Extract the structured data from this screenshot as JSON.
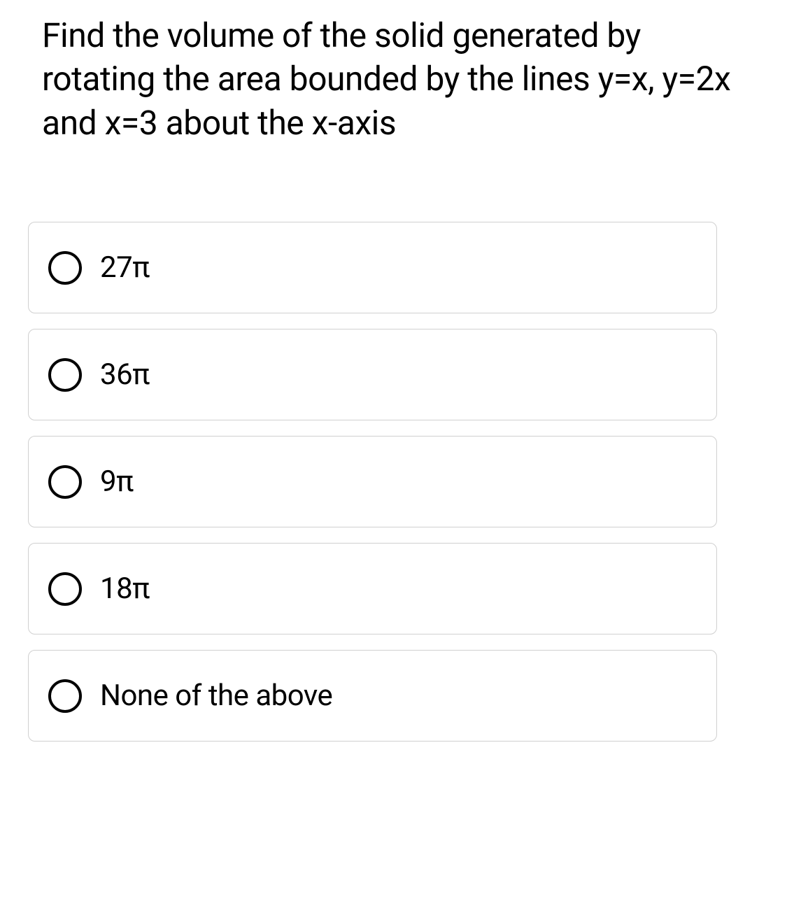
{
  "question": {
    "text": "Find the volume of the solid generated by rotating the area bounded by the lines y=x, y=2x and x=3  about the x-axis",
    "fontsize": 48,
    "text_color": "#000000"
  },
  "options": [
    {
      "label": "27π",
      "selected": false
    },
    {
      "label": "36π",
      "selected": false
    },
    {
      "label": "9π",
      "selected": false
    },
    {
      "label": "18π",
      "selected": false
    },
    {
      "label": "None of the above",
      "selected": false
    }
  ],
  "styling": {
    "background_color": "#ffffff",
    "option_border_color": "#d0d0d0",
    "option_border_radius": 10,
    "radio_border_color": "#000000",
    "radio_size": 48,
    "option_fontsize": 42
  }
}
